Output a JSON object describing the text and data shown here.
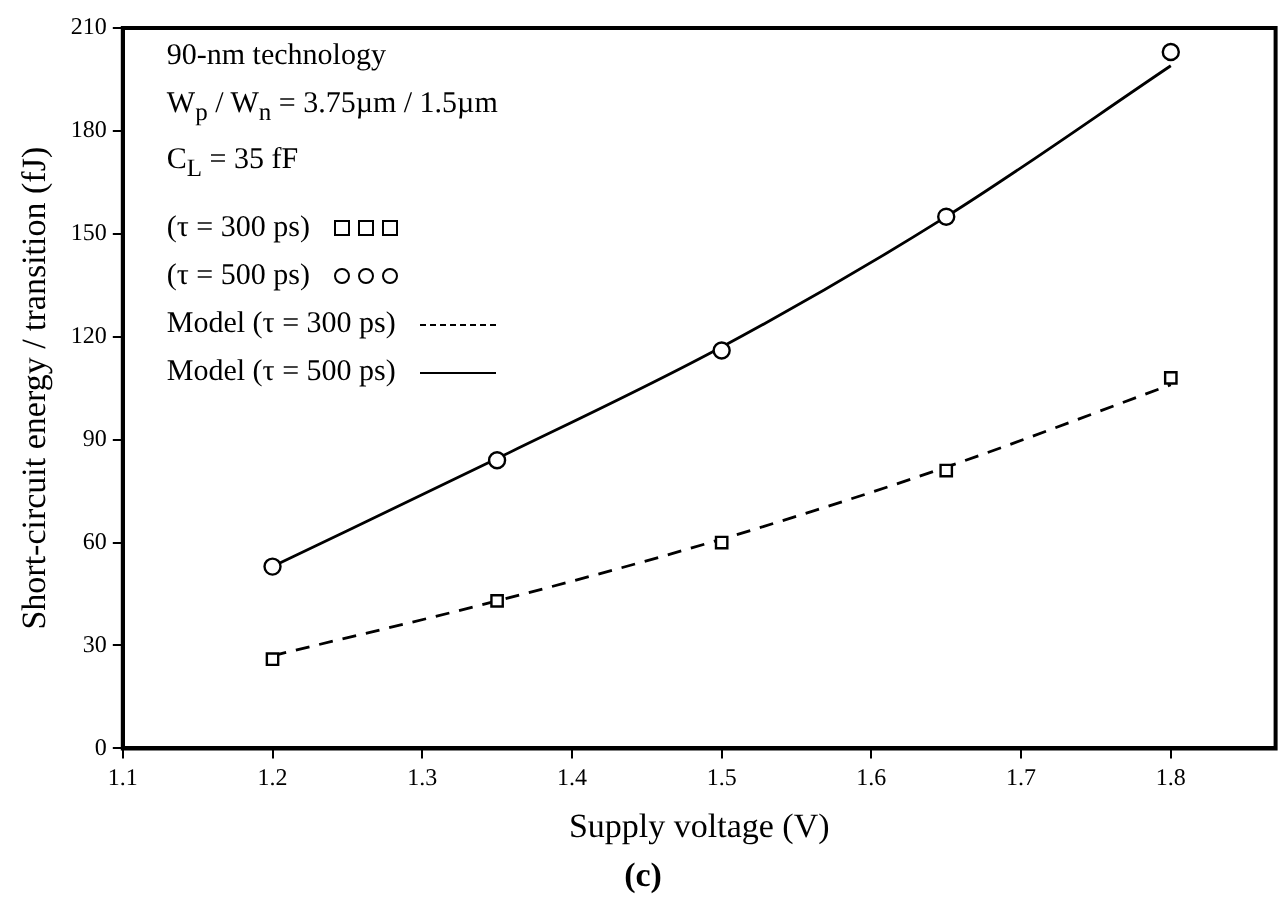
{
  "chart_data": {
    "type": "line",
    "xlabel": "Supply voltage (V)",
    "ylabel": "Short-circuit energy / transition (fJ)",
    "annotations": [
      "90-nm technology",
      "W$_{p}$ / W$_{n}$ = 3.75µm / 1.5µm",
      "C$_{L}$ = 35 fF",
      "(c)"
    ],
    "x": [
      1.2,
      1.35,
      1.5,
      1.65,
      1.8
    ],
    "series": [
      {
        "name": "(τ = 300 ps)",
        "type": "scatter",
        "marker": "square",
        "color": "#000000",
        "values": [
          26,
          43,
          60,
          81,
          108
        ]
      },
      {
        "name": "(τ = 500 ps)",
        "type": "scatter",
        "marker": "circle",
        "color": "#000000",
        "values": [
          53,
          84,
          116,
          155,
          203
        ]
      },
      {
        "name": "Model (τ = 300 ps)",
        "type": "line",
        "marker": "none",
        "line_style": "dashed",
        "color": "#000000",
        "values": [
          27,
          43,
          61,
          82,
          106
        ]
      },
      {
        "name": "Model (τ = 500 ps)",
        "type": "line",
        "marker": "none",
        "line_style": "solid",
        "color": "#000000",
        "values": [
          53,
          84.5,
          117,
          155,
          199
        ]
      }
    ],
    "xlim": [
      1.1,
      1.87
    ],
    "xticks": [
      1.1,
      1.2,
      1.3,
      1.4,
      1.5,
      1.6,
      1.7,
      1.8
    ],
    "ylim": [
      0,
      210
    ],
    "yticks": [
      0,
      30,
      60,
      90,
      120,
      150,
      180,
      210
    ],
    "grid": false,
    "legend": "top left"
  }
}
